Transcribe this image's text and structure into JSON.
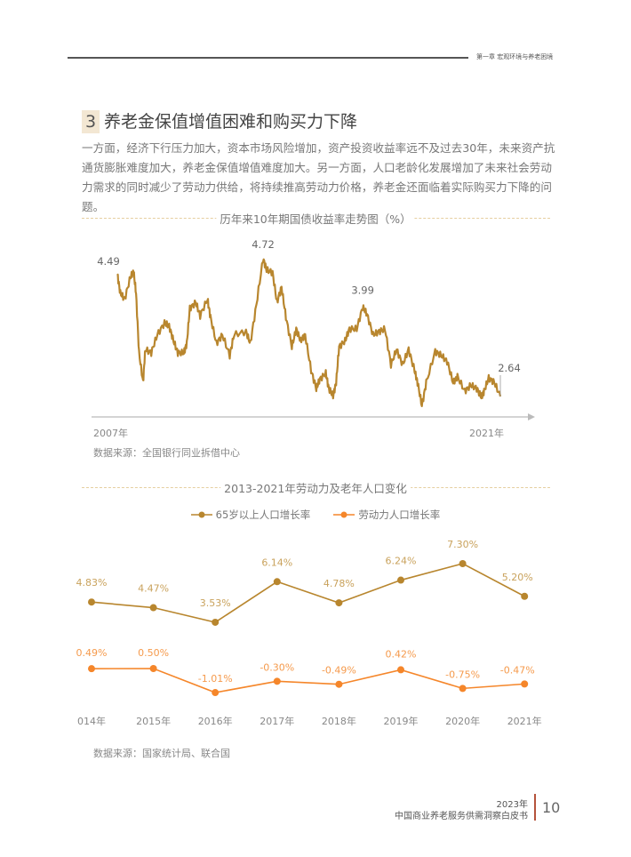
{
  "header": {
    "chapter": "第一章 宏观环境与养老困境"
  },
  "section": {
    "number": "3",
    "title": "养老金保值增值困难和购买力下降",
    "body": "一方面，经济下行压力加大，资本市场风险增加，资产投资收益率远不及过去30年，未来资产抗通货膨胀难度加大，养老金保值增值难度加大。另一方面，人口老龄化发展增加了未来社会劳动力需求的同时减少了劳动力供给，将持续推高劳动力价格，养老金还面临着实际购买力下降的问题。"
  },
  "chart_data": [
    {
      "type": "line",
      "title": "历年来10年期国债收益率走势图（%）",
      "x_start_label": "2007年",
      "x_end_label": "2021年",
      "source": "数据来源：全国银行同业拆借中心",
      "color": "#b8862e",
      "annotations": [
        {
          "x": 2007.5,
          "label": "4.49"
        },
        {
          "x": 2012.87,
          "label": "4.72"
        },
        {
          "x": 2016.54,
          "label": "3.99"
        },
        {
          "x": 2021.61,
          "label": "2.64"
        }
      ],
      "xlim": [
        2007.5,
        2021.61
      ],
      "ylim": [
        2.5,
        4.72
      ],
      "points": [
        [
          2007.5,
          4.49
        ],
        [
          2007.61,
          4.2
        ],
        [
          2007.77,
          4.11
        ],
        [
          2007.99,
          4.45
        ],
        [
          2008.1,
          4.53
        ],
        [
          2008.19,
          4.2
        ],
        [
          2008.3,
          3.3
        ],
        [
          2008.45,
          2.85
        ],
        [
          2008.53,
          3.35
        ],
        [
          2008.75,
          3.3
        ],
        [
          2008.97,
          3.57
        ],
        [
          2009.24,
          3.75
        ],
        [
          2009.41,
          3.7
        ],
        [
          2009.57,
          3.48
        ],
        [
          2009.73,
          3.3
        ],
        [
          2009.95,
          3.3
        ],
        [
          2010.06,
          3.44
        ],
        [
          2010.17,
          3.97
        ],
        [
          2010.39,
          4.06
        ],
        [
          2010.55,
          3.86
        ],
        [
          2010.82,
          4.11
        ],
        [
          2010.93,
          3.84
        ],
        [
          2011.15,
          3.44
        ],
        [
          2011.37,
          3.57
        ],
        [
          2011.64,
          3.26
        ],
        [
          2011.8,
          3.57
        ],
        [
          2012.24,
          3.62
        ],
        [
          2012.4,
          3.44
        ],
        [
          2012.62,
          4.02
        ],
        [
          2012.87,
          4.72
        ],
        [
          2013.0,
          4.55
        ],
        [
          2013.22,
          4.51
        ],
        [
          2013.38,
          4.06
        ],
        [
          2013.55,
          4.29
        ],
        [
          2013.71,
          3.84
        ],
        [
          2013.93,
          3.39
        ],
        [
          2014.09,
          3.66
        ],
        [
          2014.25,
          3.48
        ],
        [
          2014.42,
          3.57
        ],
        [
          2014.64,
          3.03
        ],
        [
          2014.83,
          2.76
        ],
        [
          2014.96,
          2.9
        ],
        [
          2015.18,
          2.99
        ],
        [
          2015.29,
          2.76
        ],
        [
          2015.45,
          2.65
        ],
        [
          2015.56,
          2.85
        ],
        [
          2015.67,
          3.39
        ],
        [
          2015.89,
          3.48
        ],
        [
          2016.05,
          3.66
        ],
        [
          2016.32,
          3.66
        ],
        [
          2016.54,
          3.99
        ],
        [
          2016.7,
          3.88
        ],
        [
          2016.92,
          3.57
        ],
        [
          2017.14,
          3.62
        ],
        [
          2017.36,
          3.66
        ],
        [
          2017.58,
          3.12
        ],
        [
          2017.79,
          3.35
        ],
        [
          2018.01,
          3.12
        ],
        [
          2018.23,
          3.35
        ],
        [
          2018.45,
          3.03
        ],
        [
          2018.56,
          2.85
        ],
        [
          2018.72,
          2.5
        ],
        [
          2018.88,
          2.85
        ],
        [
          2019.21,
          3.32
        ],
        [
          2019.43,
          3.26
        ],
        [
          2019.65,
          3.17
        ],
        [
          2019.87,
          2.85
        ],
        [
          2020.03,
          2.94
        ],
        [
          2020.3,
          2.72
        ],
        [
          2020.52,
          2.81
        ],
        [
          2020.74,
          2.76
        ],
        [
          2020.91,
          2.63
        ],
        [
          2021.01,
          2.72
        ],
        [
          2021.18,
          2.92
        ],
        [
          2021.39,
          2.85
        ],
        [
          2021.61,
          2.64
        ]
      ]
    },
    {
      "type": "line",
      "title": "2013-2021年劳动力及老年人口变化",
      "categories": [
        "014年",
        "2015年",
        "2016年",
        "2017年",
        "2018年",
        "2019年",
        "2020年",
        "2021年"
      ],
      "series": [
        {
          "name": "65岁以上人口增长率",
          "color": "#b8862e",
          "values": [
            4.83,
            4.47,
            3.53,
            6.14,
            4.78,
            6.24,
            7.3,
            5.2
          ],
          "labels": [
            "4.83%",
            "4.47%",
            "3.53%",
            "6.14%",
            "4.78%",
            "6.24%",
            "7.30%",
            "5.20%"
          ]
        },
        {
          "name": "劳动力人口增长率",
          "color": "#f5862a",
          "values": [
            0.49,
            0.5,
            -1.01,
            -0.3,
            -0.49,
            0.42,
            -0.75,
            -0.47
          ],
          "labels": [
            "0.49%",
            "0.50%",
            "-1.01%",
            "-0.30%",
            "-0.49%",
            "0.42%",
            "-0.75%",
            "-0.47%"
          ]
        }
      ],
      "source": "数据来源：国家统计局、联合国"
    }
  ],
  "footer": {
    "year": "2023年",
    "title": "中国商业养老服务供需洞察白皮书",
    "page": "10"
  }
}
